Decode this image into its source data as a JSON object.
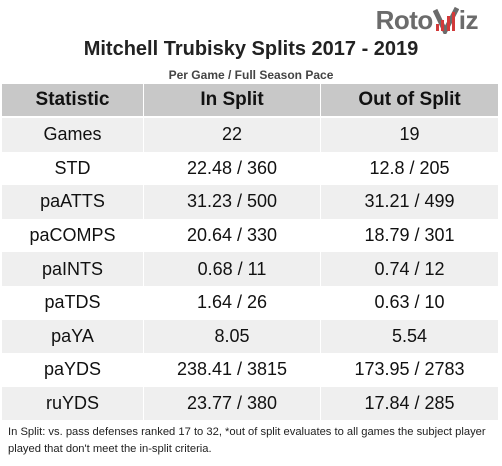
{
  "logo": {
    "text_left": "Roto",
    "text_right": "iz"
  },
  "title": "Mitchell Trubisky Splits 2017 - 2019",
  "subtitle": "Per Game / Full Season Pace",
  "table": {
    "headers": [
      "Statistic",
      "In Split",
      "Out of Split"
    ],
    "rows": [
      [
        "Games",
        "22",
        "19"
      ],
      [
        "STD",
        "22.48 / 360",
        "12.8 / 205"
      ],
      [
        "paATTS",
        "31.23 / 500",
        "31.21 / 499"
      ],
      [
        "paCOMPS",
        "20.64 / 330",
        "18.79 / 301"
      ],
      [
        "paINTS",
        "0.68 / 11",
        "0.74 / 12"
      ],
      [
        "paTDS",
        "1.64 / 26",
        "0.63 / 10"
      ],
      [
        "paYA",
        "8.05",
        "5.54"
      ],
      [
        "paYDS",
        "238.41 / 3815",
        "173.95 / 2783"
      ],
      [
        "ruYDS",
        "23.77 / 380",
        "17.84 / 285"
      ]
    ]
  },
  "footnote": "In Split: vs. pass defenses ranked 17 to 32,  *out of split evaluates to all games the subject player played that don't meet the in-split criteria.",
  "colors": {
    "header_bg": "#c8c8c8",
    "row_alt": "#efefef",
    "logo_gray": "#6b6b6b",
    "logo_red": "#d23a3a"
  }
}
